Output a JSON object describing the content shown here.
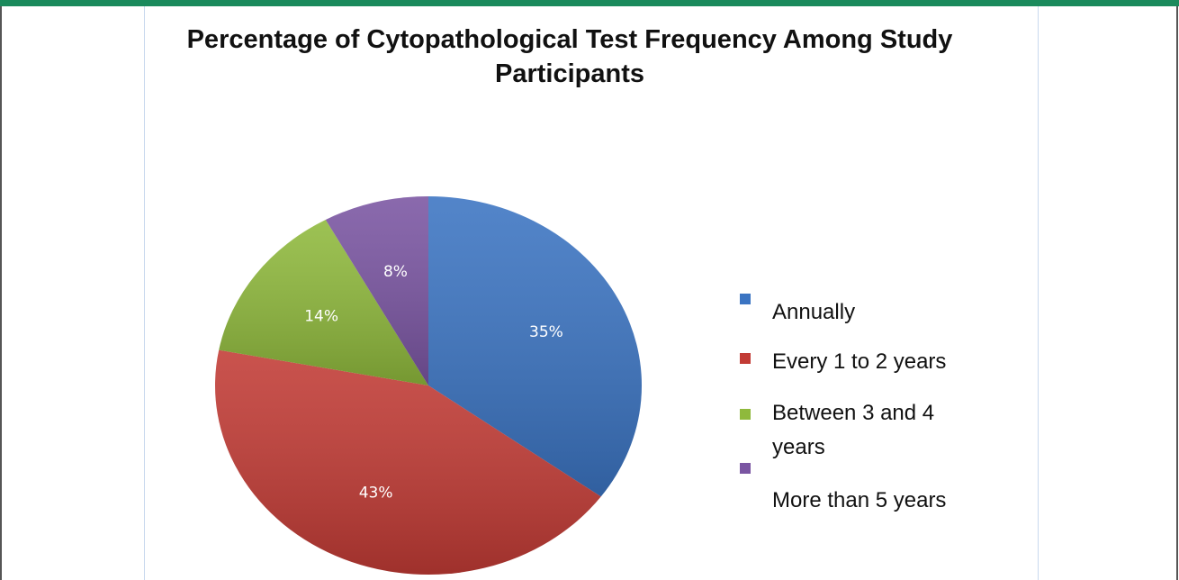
{
  "chart_data": {
    "type": "pie",
    "title": "Percentage of Cytopathological Test Frequency Among Study Participants",
    "categories": [
      "Annually",
      "Every 1 to 2 years",
      "Between 3 and 4 years",
      "More than 5 years"
    ],
    "values": [
      35,
      43,
      14,
      8
    ],
    "value_labels": [
      "35%",
      "43%",
      "14%",
      "8%"
    ],
    "colors": [
      "#3b74c2",
      "#c23b35",
      "#8fb93c",
      "#7a55a2"
    ],
    "legend": "right"
  }
}
